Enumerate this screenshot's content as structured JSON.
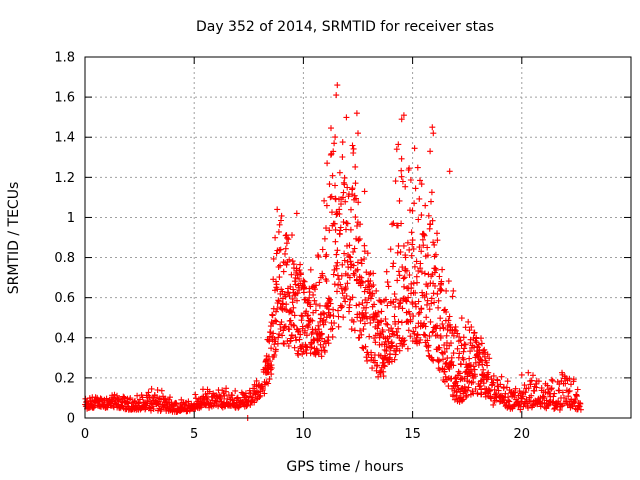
{
  "chart_data": {
    "type": "scatter",
    "title": "Day 352 of 2014, SRMTID for receiver stas",
    "xlabel": "GPS time / hours",
    "ylabel": "SRMTID / TECUs",
    "xlim": [
      0,
      25
    ],
    "ylim": [
      0,
      1.8
    ],
    "xticks": [
      0,
      5,
      10,
      15,
      20
    ],
    "xtick_labels": [
      "0",
      "5",
      "10",
      "15",
      "20"
    ],
    "yticks": [
      0,
      0.2,
      0.4,
      0.6,
      0.8,
      1,
      1.2,
      1.4,
      1.6,
      1.8
    ],
    "ytick_labels": [
      "0",
      "0.2",
      "0.4",
      "0.6",
      "0.8",
      "1",
      "1.2",
      "1.4",
      "1.6",
      "1.8"
    ],
    "grid": true,
    "marker": "plus",
    "color": "#ff0000",
    "series": [
      {
        "name": "SRMTID",
        "envelope": {
          "x": [
            0.0,
            0.5,
            1.0,
            1.5,
            2.0,
            2.5,
            3.0,
            3.5,
            4.0,
            4.5,
            5.0,
            5.5,
            6.0,
            6.5,
            7.0,
            7.5,
            7.8,
            8.2,
            8.5,
            8.7,
            9.0,
            9.3,
            9.6,
            9.9,
            10.2,
            10.5,
            10.8,
            11.0,
            11.3,
            11.6,
            11.9,
            12.2,
            12.5,
            12.8,
            13.1,
            13.4,
            13.7,
            14.0,
            14.3,
            14.6,
            14.9,
            15.2,
            15.5,
            15.8,
            16.1,
            16.4,
            16.7,
            17.0,
            17.3,
            17.6,
            17.9,
            18.2,
            18.5,
            18.8,
            19.2,
            19.6,
            20.0,
            20.4,
            20.8,
            21.2,
            21.6,
            22.0,
            22.4,
            22.7
          ],
          "low": [
            0.04,
            0.05,
            0.05,
            0.05,
            0.04,
            0.04,
            0.03,
            0.03,
            0.03,
            0.03,
            0.04,
            0.05,
            0.05,
            0.05,
            0.05,
            0.06,
            0.08,
            0.12,
            0.2,
            0.3,
            0.38,
            0.35,
            0.32,
            0.3,
            0.3,
            0.32,
            0.3,
            0.32,
            0.35,
            0.42,
            0.45,
            0.4,
            0.35,
            0.3,
            0.22,
            0.18,
            0.2,
            0.25,
            0.3,
            0.32,
            0.3,
            0.35,
            0.35,
            0.3,
            0.25,
            0.18,
            0.12,
            0.08,
            0.08,
            0.1,
            0.12,
            0.1,
            0.08,
            0.05,
            0.05,
            0.04,
            0.04,
            0.05,
            0.05,
            0.04,
            0.04,
            0.04,
            0.04,
            0.04
          ],
          "mid": [
            0.06,
            0.07,
            0.08,
            0.07,
            0.06,
            0.06,
            0.08,
            0.07,
            0.05,
            0.05,
            0.06,
            0.08,
            0.09,
            0.08,
            0.07,
            0.09,
            0.12,
            0.18,
            0.35,
            0.55,
            0.6,
            0.62,
            0.58,
            0.55,
            0.5,
            0.45,
            0.42,
            0.5,
            0.7,
            0.8,
            0.75,
            0.8,
            0.72,
            0.65,
            0.55,
            0.45,
            0.4,
            0.42,
            0.55,
            0.6,
            0.65,
            0.7,
            0.65,
            0.6,
            0.55,
            0.45,
            0.3,
            0.25,
            0.22,
            0.25,
            0.3,
            0.28,
            0.2,
            0.12,
            0.1,
            0.09,
            0.1,
            0.12,
            0.1,
            0.09,
            0.1,
            0.12,
            0.1,
            0.07
          ],
          "high": [
            0.1,
            0.12,
            0.12,
            0.12,
            0.1,
            0.12,
            0.16,
            0.14,
            0.1,
            0.1,
            0.12,
            0.15,
            0.16,
            0.15,
            0.14,
            0.16,
            0.18,
            0.28,
            0.55,
            1.05,
            1.02,
            0.95,
            0.9,
            0.85,
            0.8,
            0.8,
            0.85,
            1.3,
            1.68,
            1.2,
            1.55,
            1.45,
            1.15,
            1.0,
            0.75,
            0.7,
            0.75,
            0.95,
            1.52,
            1.25,
            1.3,
            1.45,
            1.3,
            1.22,
            1.0,
            0.75,
            0.68,
            0.6,
            0.55,
            0.52,
            0.45,
            0.4,
            0.3,
            0.25,
            0.22,
            0.2,
            0.22,
            0.25,
            0.2,
            0.18,
            0.22,
            0.25,
            0.2,
            0.12
          ]
        },
        "outliers": [
          {
            "x": 11.55,
            "y": 1.66
          },
          {
            "x": 11.5,
            "y": 1.61
          },
          {
            "x": 12.45,
            "y": 1.52
          },
          {
            "x": 12.5,
            "y": 1.42
          },
          {
            "x": 14.6,
            "y": 1.51
          },
          {
            "x": 15.9,
            "y": 1.45
          },
          {
            "x": 15.95,
            "y": 1.42
          },
          {
            "x": 15.8,
            "y": 1.33
          },
          {
            "x": 16.7,
            "y": 1.23
          },
          {
            "x": 14.5,
            "y": 1.49
          },
          {
            "x": 8.8,
            "y": 1.04
          },
          {
            "x": 9.7,
            "y": 1.02
          },
          {
            "x": 7.45,
            "y": 0.0
          },
          {
            "x": 12.8,
            "y": 1.13
          },
          {
            "x": 10.8,
            "y": 0.7
          }
        ]
      }
    ]
  }
}
